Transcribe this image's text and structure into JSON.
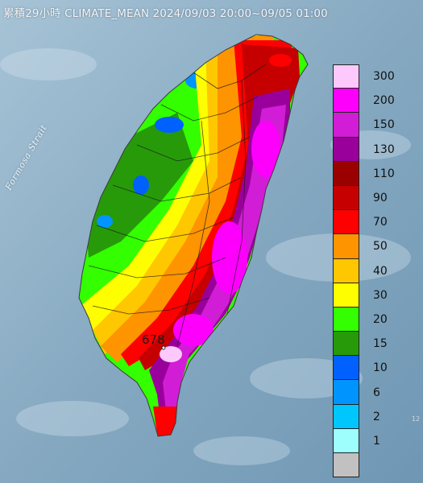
{
  "header": {
    "title": "累積29小時 CLIMATE_MEAN 2024/09/03 20:00~09/05 01:00"
  },
  "map": {
    "sea_label": "Formosa Strait",
    "peak_value": "678",
    "corner_label": "12"
  },
  "legend": {
    "items": [
      {
        "label": "300",
        "color": "#fdc9fd"
      },
      {
        "label": "200",
        "color": "#fc00fc"
      },
      {
        "label": "150",
        "color": "#d21dd6"
      },
      {
        "label": "130",
        "color": "#99009b"
      },
      {
        "label": "110",
        "color": "#9a0000"
      },
      {
        "label": "90",
        "color": "#c60000"
      },
      {
        "label": "70",
        "color": "#fe0000"
      },
      {
        "label": "50",
        "color": "#fe9400"
      },
      {
        "label": "40",
        "color": "#fec700"
      },
      {
        "label": "30",
        "color": "#fefe00"
      },
      {
        "label": "20",
        "color": "#33ff00"
      },
      {
        "label": "15",
        "color": "#279a09"
      },
      {
        "label": "10",
        "color": "#0061ff"
      },
      {
        "label": "6",
        "color": "#0094fe"
      },
      {
        "label": "2",
        "color": "#00c6fe"
      },
      {
        "label": "1",
        "color": "#9efefe"
      },
      {
        "label": "",
        "color": "#c1c1c1"
      }
    ]
  }
}
